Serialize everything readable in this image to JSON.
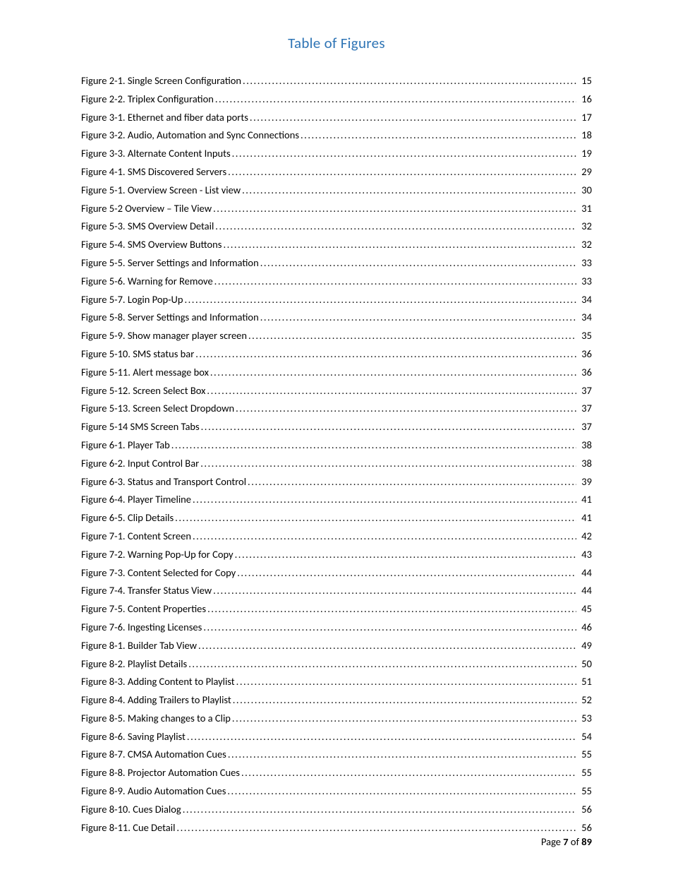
{
  "title": "Table of Figures",
  "title_color": "#2e74b5",
  "title_fontsize": 21,
  "body_fontsize": 14.5,
  "text_color": "#000000",
  "background_color": "#ffffff",
  "line_height": 1.78,
  "entries": [
    {
      "label": "Figure 2-1.  Single Screen Configuration",
      "page": "15"
    },
    {
      "label": "Figure 2-2. Triplex Configuration",
      "page": "16"
    },
    {
      "label": "Figure 3-1.  Ethernet and fiber data ports",
      "page": "17"
    },
    {
      "label": "Figure 3-2.  Audio, Automation and Sync Connections",
      "page": "18"
    },
    {
      "label": "Figure 3-3.  Alternate Content Inputs",
      "page": "19"
    },
    {
      "label": "Figure 4-1.  SMS Discovered Servers",
      "page": "29"
    },
    {
      "label": "Figure 5-1.  Overview Screen - List view",
      "page": "30"
    },
    {
      "label": "Figure 5-2 Overview – Tile View",
      "page": "31"
    },
    {
      "label": "Figure 5-3.  SMS Overview Detail",
      "page": "32"
    },
    {
      "label": "Figure 5-4.  SMS Overview Buttons",
      "page": "32"
    },
    {
      "label": "Figure 5-5.  Server Settings and Information",
      "page": "33"
    },
    {
      "label": "Figure 5-6.  Warning for Remove",
      "page": "33"
    },
    {
      "label": "Figure 5-7.  Login Pop-Up",
      "page": "34"
    },
    {
      "label": "Figure 5-8.  Server Settings and Information",
      "page": "34"
    },
    {
      "label": "Figure 5-9.  Show manager player screen",
      "page": "35"
    },
    {
      "label": "Figure 5-10.  SMS status bar",
      "page": "36"
    },
    {
      "label": "Figure 5-11.  Alert message box",
      "page": "36"
    },
    {
      "label": "Figure 5-12.  Screen Select Box",
      "page": "37"
    },
    {
      "label": "Figure 5-13.  Screen Select Dropdown",
      "page": "37"
    },
    {
      "label": "Figure 5-14 SMS Screen Tabs",
      "page": "37"
    },
    {
      "label": "Figure 6-1.  Player Tab",
      "page": "38"
    },
    {
      "label": "Figure 6-2.  Input Control Bar",
      "page": "38"
    },
    {
      "label": "Figure 6-3.  Status and Transport Control",
      "page": "39"
    },
    {
      "label": "Figure 6-4.  Player Timeline",
      "page": "41"
    },
    {
      "label": "Figure 6-5.  Clip Details",
      "page": "41"
    },
    {
      "label": "Figure 7-1.  Content Screen",
      "page": "42"
    },
    {
      "label": "Figure 7-2.  Warning Pop-Up for Copy",
      "page": "43"
    },
    {
      "label": "Figure 7-3.  Content Selected for Copy",
      "page": "44"
    },
    {
      "label": "Figure 7-4.  Transfer Status View",
      "page": "44"
    },
    {
      "label": "Figure 7-5.  Content Properties",
      "page": "45"
    },
    {
      "label": "Figure 7-6.  Ingesting Licenses",
      "page": "46"
    },
    {
      "label": "Figure 8-1.  Builder Tab View",
      "page": "49"
    },
    {
      "label": "Figure 8-2.  Playlist Details",
      "page": "50"
    },
    {
      "label": "Figure 8-3.  Adding Content to Playlist",
      "page": "51"
    },
    {
      "label": "Figure 8-4.  Adding Trailers to Playlist",
      "page": "52"
    },
    {
      "label": "Figure 8-5.  Making changes to a Clip",
      "page": "53"
    },
    {
      "label": "Figure 8-6.  Saving Playlist",
      "page": "54"
    },
    {
      "label": "Figure 8-7.  CMSA Automation Cues",
      "page": "55"
    },
    {
      "label": "Figure 8-8.  Projector Automation Cues",
      "page": "55"
    },
    {
      "label": "Figure 8-9.  Audio Automation Cues",
      "page": "55"
    },
    {
      "label": "Figure 8-10.  Cues Dialog",
      "page": "56"
    },
    {
      "label": "Figure 8-11.  Cue Detail",
      "page": "56"
    }
  ],
  "footer": {
    "prefix": "Page ",
    "current": "7",
    "middle": " of ",
    "total": "89"
  }
}
